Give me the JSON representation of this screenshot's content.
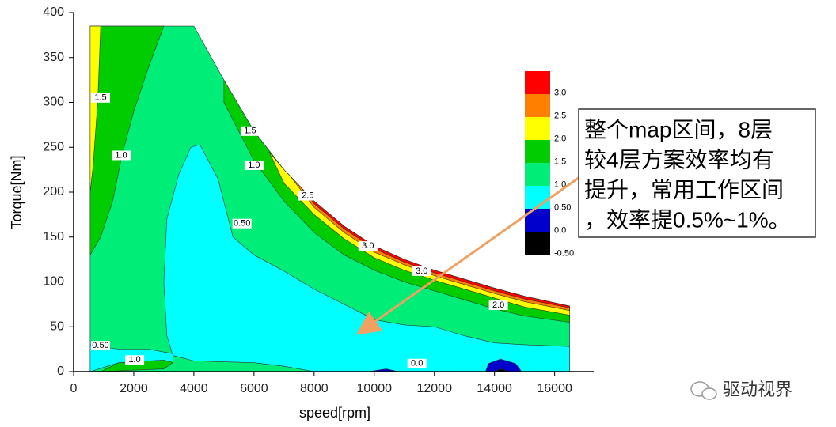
{
  "chart_data": {
    "type": "contour",
    "xlabel": "speed[rpm]",
    "ylabel": "Torque[Nm]",
    "xlim": [
      0,
      17300
    ],
    "ylim": [
      0,
      400
    ],
    "xticks": [
      0,
      2000,
      4000,
      6000,
      8000,
      10000,
      12000,
      14000,
      16000
    ],
    "yticks": [
      0,
      50,
      100,
      150,
      200,
      250,
      300,
      350,
      400
    ],
    "regions": [
      {
        "color": "#00ee77",
        "x": [
          550,
          4000,
          5000,
          6000,
          7000,
          8000,
          9000,
          10000,
          11000,
          12000,
          13000,
          14000,
          15000,
          16500,
          16500,
          550
        ],
        "y": [
          385,
          385,
          325,
          268,
          225,
          190,
          162,
          140,
          125,
          113,
          103,
          93,
          84,
          73,
          0,
          0
        ]
      },
      {
        "color": "#00cc00",
        "x": [
          550,
          3000,
          2500,
          2000,
          1600,
          1300,
          900,
          550
        ],
        "y": [
          385,
          385,
          340,
          290,
          240,
          190,
          150,
          130
        ]
      },
      {
        "color": "#ffff00",
        "x": [
          550,
          900,
          800,
          650,
          550
        ],
        "y": [
          385,
          385,
          300,
          230,
          200
        ]
      },
      {
        "color": "#00cc00",
        "x": [
          5000,
          6000,
          7000,
          8000,
          9000,
          10000,
          11000,
          12000,
          13000,
          14000,
          15000,
          16500,
          16500,
          15000,
          14000,
          13000,
          12000,
          11000,
          10000,
          9000,
          8000,
          7000,
          6000,
          5000
        ],
        "y": [
          325,
          268,
          225,
          190,
          162,
          140,
          125,
          113,
          103,
          93,
          84,
          73,
          55,
          62,
          70,
          80,
          90,
          100,
          113,
          130,
          155,
          190,
          235,
          300
        ]
      },
      {
        "color": "#ffff00",
        "x": [
          6500,
          7000,
          8000,
          9000,
          10000,
          11000,
          12000,
          13000,
          14000,
          15000,
          16500,
          16500,
          15000,
          14000,
          13000,
          12000,
          11000,
          10000,
          9000,
          8000,
          7000
        ],
        "y": [
          245,
          225,
          190,
          162,
          140,
          125,
          113,
          103,
          93,
          84,
          73,
          63,
          72,
          82,
          92,
          102,
          113,
          127,
          148,
          175,
          210
        ]
      },
      {
        "color": "#ff8000",
        "x": [
          7200,
          8000,
          9000,
          10000,
          11000,
          12000,
          13000,
          14000,
          15000,
          16500,
          16500,
          15000,
          14000,
          13000,
          12000,
          11000,
          10000,
          9000,
          8000
        ],
        "y": [
          218,
          190,
          162,
          140,
          125,
          113,
          103,
          93,
          84,
          73,
          68,
          78,
          87,
          97,
          107,
          119,
          133,
          155,
          183
        ]
      },
      {
        "color": "#ff0000",
        "x": [
          7600,
          8000,
          9000,
          10000,
          11000,
          12000,
          13000,
          14000,
          15000,
          16500,
          16500,
          15000,
          14000,
          13000,
          12000,
          11000,
          10000,
          9000,
          8000
        ],
        "y": [
          204,
          190,
          162,
          140,
          125,
          113,
          103,
          93,
          84,
          73,
          71,
          81,
          90,
          100,
          110,
          122,
          137,
          159,
          187
        ]
      },
      {
        "color": "#00ffff",
        "x": [
          4200,
          4800,
          5300,
          6000,
          7000,
          8000,
          9000,
          10000,
          11000,
          12000,
          13000,
          14000,
          15000,
          16500,
          16500,
          8000,
          7000,
          6000,
          4000,
          3300,
          3100,
          3000,
          3100,
          3500,
          3900
        ],
        "y": [
          253,
          215,
          150,
          130,
          112,
          92,
          75,
          58,
          52,
          50,
          40,
          32,
          30,
          28,
          0,
          0,
          6,
          10,
          12,
          18,
          40,
          100,
          170,
          220,
          250
        ]
      },
      {
        "color": "#00ffff",
        "x": [
          550,
          1500,
          2500,
          3300,
          3300,
          1500,
          550
        ],
        "y": [
          30,
          25,
          25,
          20,
          12,
          10,
          0
        ]
      },
      {
        "color": "#00cc00",
        "x": [
          900,
          1500,
          3000,
          3300,
          3000,
          900
        ],
        "y": [
          0,
          10,
          13,
          10,
          3,
          0
        ]
      },
      {
        "color": "#0000cc",
        "x": [
          13700,
          13800,
          14200,
          14700,
          14900
        ],
        "y": [
          0,
          9,
          14,
          9,
          0
        ]
      },
      {
        "color": "#000000",
        "x": [
          14000,
          14200,
          14500
        ],
        "y": [
          0,
          3,
          0
        ]
      },
      {
        "color": "#0000cc",
        "x": [
          9800,
          10400,
          10800
        ],
        "y": [
          0,
          3,
          0
        ]
      }
    ],
    "contour_labels": [
      {
        "value": 1.5,
        "label": "1.5",
        "x": 895,
        "y": 305
      },
      {
        "value": 1,
        "label": "1.0",
        "x": 1580,
        "y": 241
      },
      {
        "value": 1.5,
        "label": "1.5",
        "x": 5870,
        "y": 268
      },
      {
        "value": 1,
        "label": "1.0",
        "x": 6000,
        "y": 230
      },
      {
        "value": 2.5,
        "label": "2.5",
        "x": 7790,
        "y": 196
      },
      {
        "value": 0.5,
        "label": "0.50",
        "x": 5600,
        "y": 165
      },
      {
        "value": 3,
        "label": "3.0",
        "x": 9790,
        "y": 140
      },
      {
        "value": 3,
        "label": "3.0",
        "x": 11580,
        "y": 112
      },
      {
        "value": 2,
        "label": "2.0",
        "x": 14130,
        "y": 74
      },
      {
        "value": 0.5,
        "label": "0.50",
        "x": 895,
        "y": 29
      },
      {
        "value": 1,
        "label": "1.0",
        "x": 2030,
        "y": 13
      },
      {
        "value": 0,
        "label": "0.0",
        "x": 11420,
        "y": 9
      }
    ],
    "colorbar": {
      "levels": [
        {
          "value": 3,
          "label": "3.0"
        },
        {
          "value": 2.5,
          "label": "2.5"
        },
        {
          "value": 2,
          "label": "2.0"
        },
        {
          "value": 1.5,
          "label": "1.5"
        },
        {
          "value": 1,
          "label": "1.0"
        },
        {
          "value": 0.5,
          "label": "0.50"
        },
        {
          "value": 0,
          "label": "0.0"
        },
        {
          "value": -0.5,
          "label": "-0.50"
        }
      ],
      "colors": [
        "#ff0000",
        "#ff8000",
        "#ffff00",
        "#00cc00",
        "#00ee77",
        "#00ffff",
        "#0000cc",
        "#000000"
      ]
    },
    "annotation": [
      "整个map区间，8层",
      "较4层方案效率均有",
      "提升，常用工作区间",
      "，效率提0.5%~1%。"
    ],
    "watermark": "驱动视界"
  }
}
